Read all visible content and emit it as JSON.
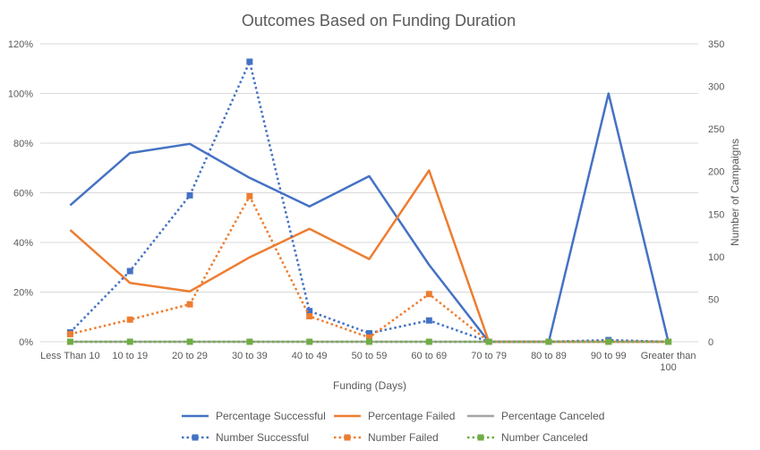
{
  "chart_data": {
    "type": "line",
    "title": "Outcomes Based on Funding Duration",
    "xlabel": "Funding (Days)",
    "ylabel_left": "",
    "ylabel_right": "Number of Campaigns",
    "categories": [
      "Less Than 10",
      "10 to 19",
      "20 to 29",
      "30 to 39",
      "40 to 49",
      "50 to 59",
      "60 to 69",
      "70 to 79",
      "80 to 89",
      "90 to 99",
      "Greater than 100"
    ],
    "y_left": {
      "min": 0,
      "max": 1.2,
      "ticks": [
        0,
        0.2,
        0.4,
        0.6,
        0.8,
        1.0,
        1.2
      ],
      "tick_labels": [
        "0%",
        "20%",
        "40%",
        "60%",
        "80%",
        "100%",
        "120%"
      ]
    },
    "y_right": {
      "min": 0,
      "max": 350,
      "ticks": [
        0,
        50,
        100,
        150,
        200,
        250,
        300,
        350
      ],
      "tick_labels": [
        "0",
        "50",
        "100",
        "150",
        "200",
        "250",
        "300",
        "350"
      ]
    },
    "grid": true,
    "legend_position": "bottom",
    "series": [
      {
        "name": "Percentage Successful",
        "axis": "left",
        "style": "solid",
        "color": "#4472C4",
        "values": [
          0.55,
          0.76,
          0.797,
          0.66,
          0.545,
          0.667,
          0.31,
          0,
          0,
          1.0,
          0
        ]
      },
      {
        "name": "Percentage Failed",
        "axis": "left",
        "style": "solid",
        "color": "#ED7D31",
        "values": [
          0.45,
          0.237,
          0.203,
          0.34,
          0.455,
          0.333,
          0.69,
          0,
          0,
          0,
          0
        ]
      },
      {
        "name": "Percentage Canceled",
        "axis": "left",
        "style": "solid",
        "color": "#A5A5A5",
        "values": [
          0,
          0,
          0,
          0,
          0,
          0,
          0,
          0,
          0,
          0,
          0
        ]
      },
      {
        "name": "Number Successful",
        "axis": "right",
        "style": "dotted",
        "color": "#4472C4",
        "values": [
          11,
          83,
          172,
          329,
          36,
          10,
          25,
          0,
          0,
          2,
          0
        ]
      },
      {
        "name": "Number Failed",
        "axis": "right",
        "style": "dotted",
        "color": "#ED7D31",
        "values": [
          9,
          26,
          44,
          171,
          30,
          5,
          56,
          0,
          0,
          0,
          0
        ]
      },
      {
        "name": "Number Canceled",
        "axis": "right",
        "style": "dotted",
        "color": "#70AD47",
        "values": [
          0,
          0,
          0,
          0,
          0,
          0,
          0,
          0,
          0,
          0,
          0
        ]
      }
    ]
  }
}
